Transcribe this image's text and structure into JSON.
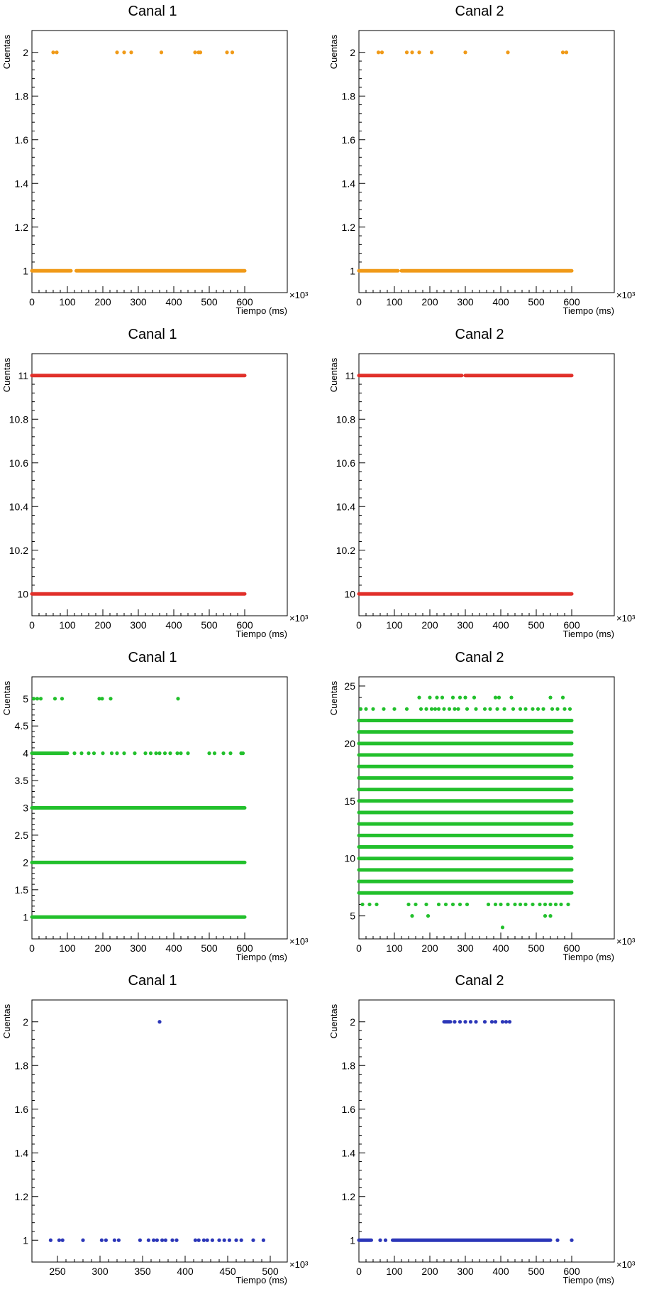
{
  "chart_data": [
    {
      "id": "p11",
      "type": "scatter",
      "title": "Canal 1",
      "xlabel": "Tiempo (ms)",
      "ylabel": "Cuentas",
      "x_multiplier": "×10³",
      "xlim": [
        0,
        720
      ],
      "ylim": [
        0.9,
        2.1
      ],
      "xticks": [
        0,
        100,
        200,
        300,
        400,
        500,
        600
      ],
      "yticks": [
        1,
        1.2,
        1.4,
        1.6,
        1.8,
        2
      ],
      "color": "#f09a18",
      "segments": [
        {
          "y": 1,
          "x0": 0,
          "x1": 110
        },
        {
          "y": 1,
          "x0": 125,
          "x1": 600
        }
      ],
      "points": [
        [
          60,
          2
        ],
        [
          70,
          2
        ],
        [
          240,
          2
        ],
        [
          260,
          2
        ],
        [
          280,
          2
        ],
        [
          365,
          2
        ],
        [
          460,
          2
        ],
        [
          470,
          2
        ],
        [
          475,
          2
        ],
        [
          550,
          2
        ],
        [
          565,
          2
        ]
      ]
    },
    {
      "id": "p12",
      "type": "scatter",
      "title": "Canal 2",
      "xlabel": "Tiempo (ms)",
      "ylabel": "Cuentas",
      "x_multiplier": "×10³",
      "xlim": [
        0,
        720
      ],
      "ylim": [
        0.9,
        2.1
      ],
      "xticks": [
        0,
        100,
        200,
        300,
        400,
        500,
        600
      ],
      "yticks": [
        1,
        1.2,
        1.4,
        1.6,
        1.8,
        2
      ],
      "color": "#f09a18",
      "segments": [
        {
          "y": 1,
          "x0": 0,
          "x1": 110
        },
        {
          "y": 1,
          "x0": 120,
          "x1": 600
        }
      ],
      "points": [
        [
          55,
          2
        ],
        [
          65,
          2
        ],
        [
          135,
          2
        ],
        [
          150,
          2
        ],
        [
          170,
          2
        ],
        [
          205,
          2
        ],
        [
          300,
          2
        ],
        [
          420,
          2
        ],
        [
          575,
          2
        ],
        [
          585,
          2
        ]
      ]
    },
    {
      "id": "p21",
      "type": "scatter",
      "title": "Canal 1",
      "xlabel": "Tiempo (ms)",
      "ylabel": "Cuentas",
      "x_multiplier": "×10³",
      "xlim": [
        0,
        720
      ],
      "ylim": [
        9.9,
        11.1
      ],
      "xticks": [
        0,
        100,
        200,
        300,
        400,
        500,
        600
      ],
      "yticks": [
        10,
        10.2,
        10.4,
        10.6,
        10.8,
        11
      ],
      "color": "#e1302a",
      "segments": [
        {
          "y": 10,
          "x0": 0,
          "x1": 600
        },
        {
          "y": 11,
          "x0": 0,
          "x1": 600
        }
      ],
      "points": []
    },
    {
      "id": "p22",
      "type": "scatter",
      "title": "Canal 2",
      "xlabel": "Tiempo (ms)",
      "ylabel": "Cuentas",
      "x_multiplier": "×10³",
      "xlim": [
        0,
        720
      ],
      "ylim": [
        9.9,
        11.1
      ],
      "xticks": [
        0,
        100,
        200,
        300,
        400,
        500,
        600
      ],
      "yticks": [
        10,
        10.2,
        10.4,
        10.6,
        10.8,
        11
      ],
      "color": "#e1302a",
      "segments": [
        {
          "y": 10,
          "x0": 0,
          "x1": 600
        },
        {
          "y": 11,
          "x0": 0,
          "x1": 290
        },
        {
          "y": 11,
          "x0": 300,
          "x1": 600
        }
      ],
      "points": []
    },
    {
      "id": "p31",
      "type": "scatter",
      "title": "Canal 1",
      "xlabel": "Tiempo (ms)",
      "ylabel": "Cuentas",
      "x_multiplier": "×10³",
      "xlim": [
        0,
        720
      ],
      "ylim": [
        0.6,
        5.4
      ],
      "xticks": [
        0,
        100,
        200,
        300,
        400,
        500,
        600
      ],
      "yticks": [
        1,
        1.5,
        2,
        2.5,
        3,
        3.5,
        4,
        4.5,
        5
      ],
      "color": "#22c02c",
      "segments": [
        {
          "y": 1,
          "x0": 0,
          "x1": 600
        },
        {
          "y": 2,
          "x0": 0,
          "x1": 600
        },
        {
          "y": 3,
          "x0": 0,
          "x1": 600
        },
        {
          "y": 4,
          "x0": 0,
          "x1": 100
        }
      ],
      "points": [
        [
          5,
          5
        ],
        [
          15,
          5
        ],
        [
          25,
          5
        ],
        [
          65,
          5
        ],
        [
          85,
          5
        ],
        [
          190,
          5
        ],
        [
          198,
          5
        ],
        [
          222,
          5
        ],
        [
          412,
          5
        ],
        [
          120,
          4
        ],
        [
          140,
          4
        ],
        [
          160,
          4
        ],
        [
          175,
          4
        ],
        [
          200,
          4
        ],
        [
          225,
          4
        ],
        [
          240,
          4
        ],
        [
          260,
          4
        ],
        [
          290,
          4
        ],
        [
          320,
          4
        ],
        [
          335,
          4
        ],
        [
          350,
          4
        ],
        [
          360,
          4
        ],
        [
          375,
          4
        ],
        [
          390,
          4
        ],
        [
          410,
          4
        ],
        [
          420,
          4
        ],
        [
          440,
          4
        ],
        [
          500,
          4
        ],
        [
          515,
          4
        ],
        [
          540,
          4
        ],
        [
          560,
          4
        ],
        [
          590,
          4
        ],
        [
          595,
          4
        ]
      ]
    },
    {
      "id": "p32",
      "type": "scatter",
      "title": "Canal 2",
      "xlabel": "Tiempo (ms)",
      "ylabel": "Cuentas",
      "x_multiplier": "×10³",
      "xlim": [
        0,
        720
      ],
      "ylim": [
        3,
        25.8
      ],
      "xticks": [
        0,
        100,
        200,
        300,
        400,
        500,
        600
      ],
      "yticks": [
        5,
        10,
        15,
        20,
        25
      ],
      "color": "#22c02c",
      "segments": [
        {
          "y": 7,
          "x0": 0,
          "x1": 600
        },
        {
          "y": 8,
          "x0": 0,
          "x1": 600
        },
        {
          "y": 9,
          "x0": 0,
          "x1": 600
        },
        {
          "y": 10,
          "x0": 0,
          "x1": 600
        },
        {
          "y": 11,
          "x0": 0,
          "x1": 600
        },
        {
          "y": 12,
          "x0": 0,
          "x1": 600
        },
        {
          "y": 13,
          "x0": 0,
          "x1": 600
        },
        {
          "y": 14,
          "x0": 0,
          "x1": 600
        },
        {
          "y": 15,
          "x0": 0,
          "x1": 600
        },
        {
          "y": 16,
          "x0": 0,
          "x1": 600
        },
        {
          "y": 17,
          "x0": 0,
          "x1": 600
        },
        {
          "y": 18,
          "x0": 0,
          "x1": 600
        },
        {
          "y": 19,
          "x0": 0,
          "x1": 600
        },
        {
          "y": 20,
          "x0": 0,
          "x1": 600
        },
        {
          "y": 21,
          "x0": 0,
          "x1": 600
        },
        {
          "y": 22,
          "x0": 0,
          "x1": 600
        }
      ],
      "points": [
        [
          170,
          24
        ],
        [
          200,
          24
        ],
        [
          220,
          24
        ],
        [
          235,
          24
        ],
        [
          265,
          24
        ],
        [
          285,
          24
        ],
        [
          300,
          24
        ],
        [
          325,
          24
        ],
        [
          385,
          24
        ],
        [
          395,
          24
        ],
        [
          430,
          24
        ],
        [
          540,
          24
        ],
        [
          575,
          24
        ],
        [
          5,
          23
        ],
        [
          20,
          23
        ],
        [
          40,
          23
        ],
        [
          70,
          23
        ],
        [
          100,
          23
        ],
        [
          135,
          23
        ],
        [
          175,
          23
        ],
        [
          190,
          23
        ],
        [
          205,
          23
        ],
        [
          215,
          23
        ],
        [
          225,
          23
        ],
        [
          240,
          23
        ],
        [
          255,
          23
        ],
        [
          270,
          23
        ],
        [
          280,
          23
        ],
        [
          305,
          23
        ],
        [
          330,
          23
        ],
        [
          355,
          23
        ],
        [
          370,
          23
        ],
        [
          390,
          23
        ],
        [
          410,
          23
        ],
        [
          435,
          23
        ],
        [
          455,
          23
        ],
        [
          470,
          23
        ],
        [
          490,
          23
        ],
        [
          505,
          23
        ],
        [
          520,
          23
        ],
        [
          545,
          23
        ],
        [
          560,
          23
        ],
        [
          580,
          23
        ],
        [
          595,
          23
        ],
        [
          10,
          6
        ],
        [
          30,
          6
        ],
        [
          50,
          6
        ],
        [
          140,
          6
        ],
        [
          160,
          6
        ],
        [
          190,
          6
        ],
        [
          225,
          6
        ],
        [
          245,
          6
        ],
        [
          265,
          6
        ],
        [
          285,
          6
        ],
        [
          305,
          6
        ],
        [
          365,
          6
        ],
        [
          385,
          6
        ],
        [
          400,
          6
        ],
        [
          420,
          6
        ],
        [
          440,
          6
        ],
        [
          455,
          6
        ],
        [
          470,
          6
        ],
        [
          490,
          6
        ],
        [
          510,
          6
        ],
        [
          525,
          6
        ],
        [
          540,
          6
        ],
        [
          555,
          6
        ],
        [
          570,
          6
        ],
        [
          590,
          6
        ],
        [
          150,
          5
        ],
        [
          195,
          5
        ],
        [
          525,
          5
        ],
        [
          540,
          5
        ],
        [
          405,
          4
        ]
      ]
    },
    {
      "id": "p41",
      "type": "scatter",
      "title": "Canal 1",
      "xlabel": "Tiempo (ms)",
      "ylabel": "Cuentas",
      "x_multiplier": "×10³",
      "xlim": [
        220,
        520
      ],
      "ylim": [
        0.9,
        2.1
      ],
      "xticks": [
        250,
        300,
        350,
        400,
        450,
        500
      ],
      "yticks": [
        1,
        1.2,
        1.4,
        1.6,
        1.8,
        2
      ],
      "color": "#2b36b8",
      "segments": [],
      "points": [
        [
          370,
          2
        ],
        [
          242,
          1
        ],
        [
          252,
          1
        ],
        [
          256,
          1
        ],
        [
          280,
          1
        ],
        [
          302,
          1
        ],
        [
          307,
          1
        ],
        [
          317,
          1
        ],
        [
          322,
          1
        ],
        [
          347,
          1
        ],
        [
          357,
          1
        ],
        [
          363,
          1
        ],
        [
          367,
          1
        ],
        [
          373,
          1
        ],
        [
          377,
          1
        ],
        [
          385,
          1
        ],
        [
          390,
          1
        ],
        [
          412,
          1
        ],
        [
          416,
          1
        ],
        [
          422,
          1
        ],
        [
          426,
          1
        ],
        [
          432,
          1
        ],
        [
          440,
          1
        ],
        [
          446,
          1
        ],
        [
          452,
          1
        ],
        [
          460,
          1
        ],
        [
          466,
          1
        ],
        [
          480,
          1
        ],
        [
          492,
          1
        ]
      ]
    },
    {
      "id": "p42",
      "type": "scatter",
      "title": "Canal 2",
      "xlabel": "Tiempo (ms)",
      "ylabel": "Cuentas",
      "x_multiplier": "×10³",
      "xlim": [
        0,
        720
      ],
      "ylim": [
        0.9,
        2.1
      ],
      "xticks": [
        0,
        100,
        200,
        300,
        400,
        500,
        600
      ],
      "yticks": [
        1,
        1.2,
        1.4,
        1.6,
        1.8,
        2
      ],
      "color": "#2b36b8",
      "segments": [
        {
          "y": 1,
          "x0": 0,
          "x1": 35
        },
        {
          "y": 1,
          "x0": 95,
          "x1": 540
        },
        {
          "y": 2,
          "x0": 240,
          "x1": 258
        }
      ],
      "points": [
        [
          60,
          1
        ],
        [
          75,
          1
        ],
        [
          560,
          1
        ],
        [
          600,
          1
        ],
        [
          270,
          2
        ],
        [
          285,
          2
        ],
        [
          300,
          2
        ],
        [
          315,
          2
        ],
        [
          330,
          2
        ],
        [
          355,
          2
        ],
        [
          375,
          2
        ],
        [
          385,
          2
        ],
        [
          405,
          2
        ],
        [
          415,
          2
        ],
        [
          425,
          2
        ]
      ]
    }
  ]
}
